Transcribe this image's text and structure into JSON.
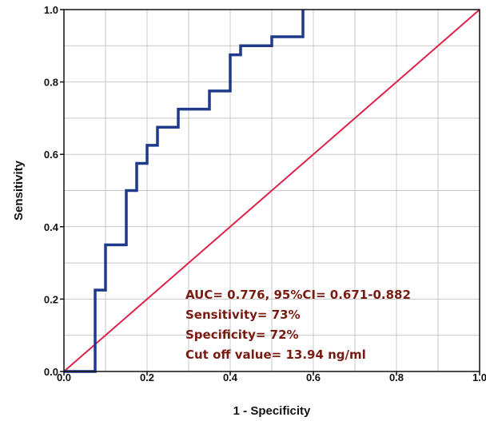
{
  "chart_data": {
    "type": "line",
    "title": "",
    "xlabel": "1 - Specificity",
    "ylabel": "Sensitivity",
    "xlim": [
      0,
      1
    ],
    "ylim": [
      0,
      1
    ],
    "x_ticks": [
      "0.0",
      "0.2",
      "0.4",
      "0.6",
      "0.8",
      "1.0"
    ],
    "y_ticks": [
      "0.0",
      "0.2",
      "0.4",
      "0.6",
      "0.8",
      "1.0"
    ],
    "grid": true,
    "series": [
      {
        "role": "roc-curve",
        "color": "#1f3a8a",
        "x": [
          0.0,
          0.075,
          0.075,
          0.1,
          0.1,
          0.15,
          0.15,
          0.175,
          0.175,
          0.2,
          0.2,
          0.225,
          0.225,
          0.275,
          0.275,
          0.35,
          0.35,
          0.4,
          0.4,
          0.425,
          0.425,
          0.5,
          0.5,
          0.575,
          0.575
        ],
        "y": [
          0.0,
          0.0,
          0.225,
          0.225,
          0.35,
          0.35,
          0.5,
          0.5,
          0.575,
          0.575,
          0.625,
          0.625,
          0.675,
          0.675,
          0.725,
          0.725,
          0.775,
          0.775,
          0.875,
          0.875,
          0.9,
          0.9,
          0.925,
          0.925,
          1.0
        ]
      },
      {
        "role": "reference-line",
        "color": "#e0204a",
        "x": [
          0,
          1
        ],
        "y": [
          0,
          1
        ]
      }
    ],
    "annotations": [
      "AUC= 0.776, 95%CI= 0.671-0.882",
      "Sensitivity= 73%",
      "Specificity= 72%",
      "Cut off value= 13.94 ng/ml"
    ]
  }
}
